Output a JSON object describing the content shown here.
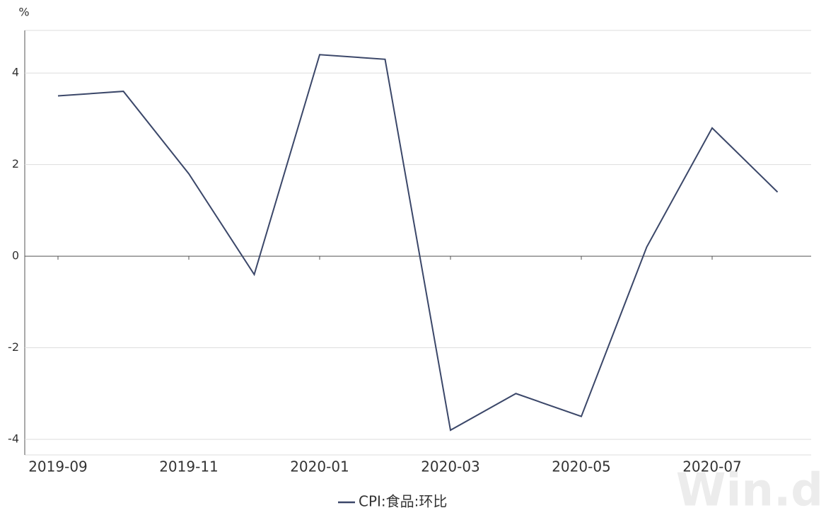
{
  "chart_data": {
    "type": "line",
    "unit_label": "%",
    "categories": [
      "2019-09",
      null,
      "2019-11",
      null,
      "2020-01",
      null,
      "2020-03",
      null,
      "2020-05",
      null,
      "2020-07",
      null
    ],
    "series": [
      {
        "name": "CPI:食品:环比",
        "color": "#3b4769",
        "values": [
          3.5,
          3.6,
          1.8,
          -0.4,
          4.4,
          4.3,
          -3.8,
          -3.0,
          -3.5,
          0.2,
          2.8,
          1.4
        ]
      }
    ],
    "ylim": [
      -4.34,
      4.93
    ],
    "yticks": [
      -4,
      -2,
      0,
      2,
      4
    ],
    "grid": true,
    "legend": "bottom",
    "watermark": "Win.d"
  }
}
